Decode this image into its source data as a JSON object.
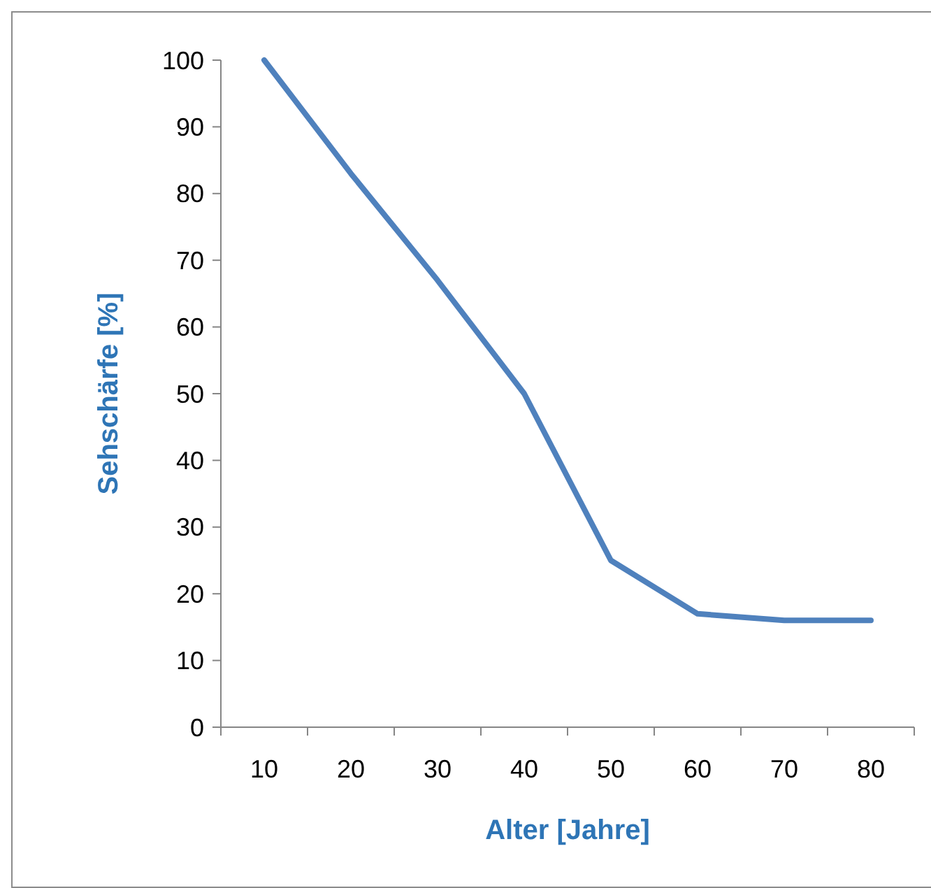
{
  "chart_data": {
    "type": "line",
    "xlabel": "Alter [Jahre]",
    "ylabel": "Sehschärfe [%]",
    "categories": [
      "10",
      "20",
      "30",
      "40",
      "50",
      "60",
      "70",
      "80"
    ],
    "series": [
      {
        "color": "#4f81bd",
        "values": [
          100,
          83,
          67,
          50,
          25,
          17,
          16,
          16
        ]
      }
    ],
    "ylim": [
      0,
      100
    ],
    "yticks": [
      0,
      10,
      20,
      30,
      40,
      50,
      60,
      70,
      80,
      90,
      100
    ]
  }
}
